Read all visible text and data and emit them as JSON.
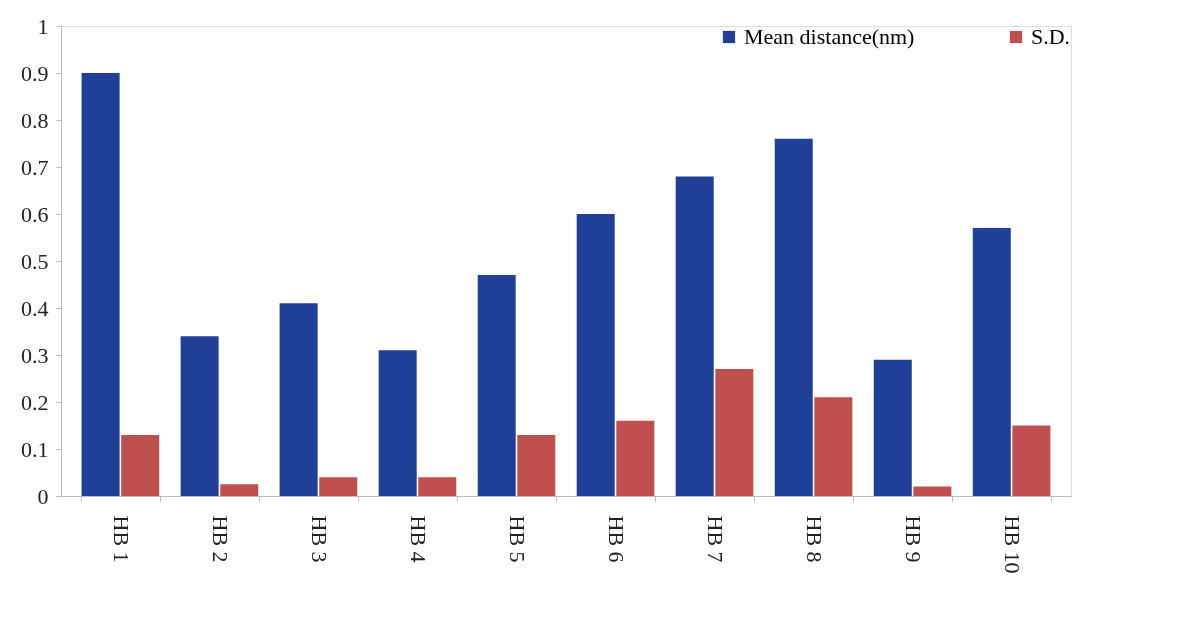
{
  "chart_data": {
    "type": "bar",
    "categories": [
      "HB 1",
      "HB 2",
      "HB 3",
      "HB 4",
      "HB 5",
      "HB 6",
      "HB 7",
      "HB 8",
      "HB 9",
      "HB 10"
    ],
    "series": [
      {
        "name": "Mean distance(nm)",
        "color": "#1f4096",
        "values": [
          0.9,
          0.34,
          0.41,
          0.31,
          0.47,
          0.6,
          0.68,
          0.76,
          0.29,
          0.57
        ]
      },
      {
        "name": "S.D.",
        "color": "#c0504d",
        "values": [
          0.13,
          0.025,
          0.04,
          0.04,
          0.13,
          0.16,
          0.27,
          0.21,
          0.02,
          0.15
        ]
      }
    ],
    "ylim": [
      0,
      1
    ],
    "yticks": [
      0,
      0.1,
      0.2,
      0.3,
      0.4,
      0.5,
      0.6,
      0.7,
      0.8,
      0.9,
      1
    ],
    "grid": false,
    "legend": "top right"
  }
}
